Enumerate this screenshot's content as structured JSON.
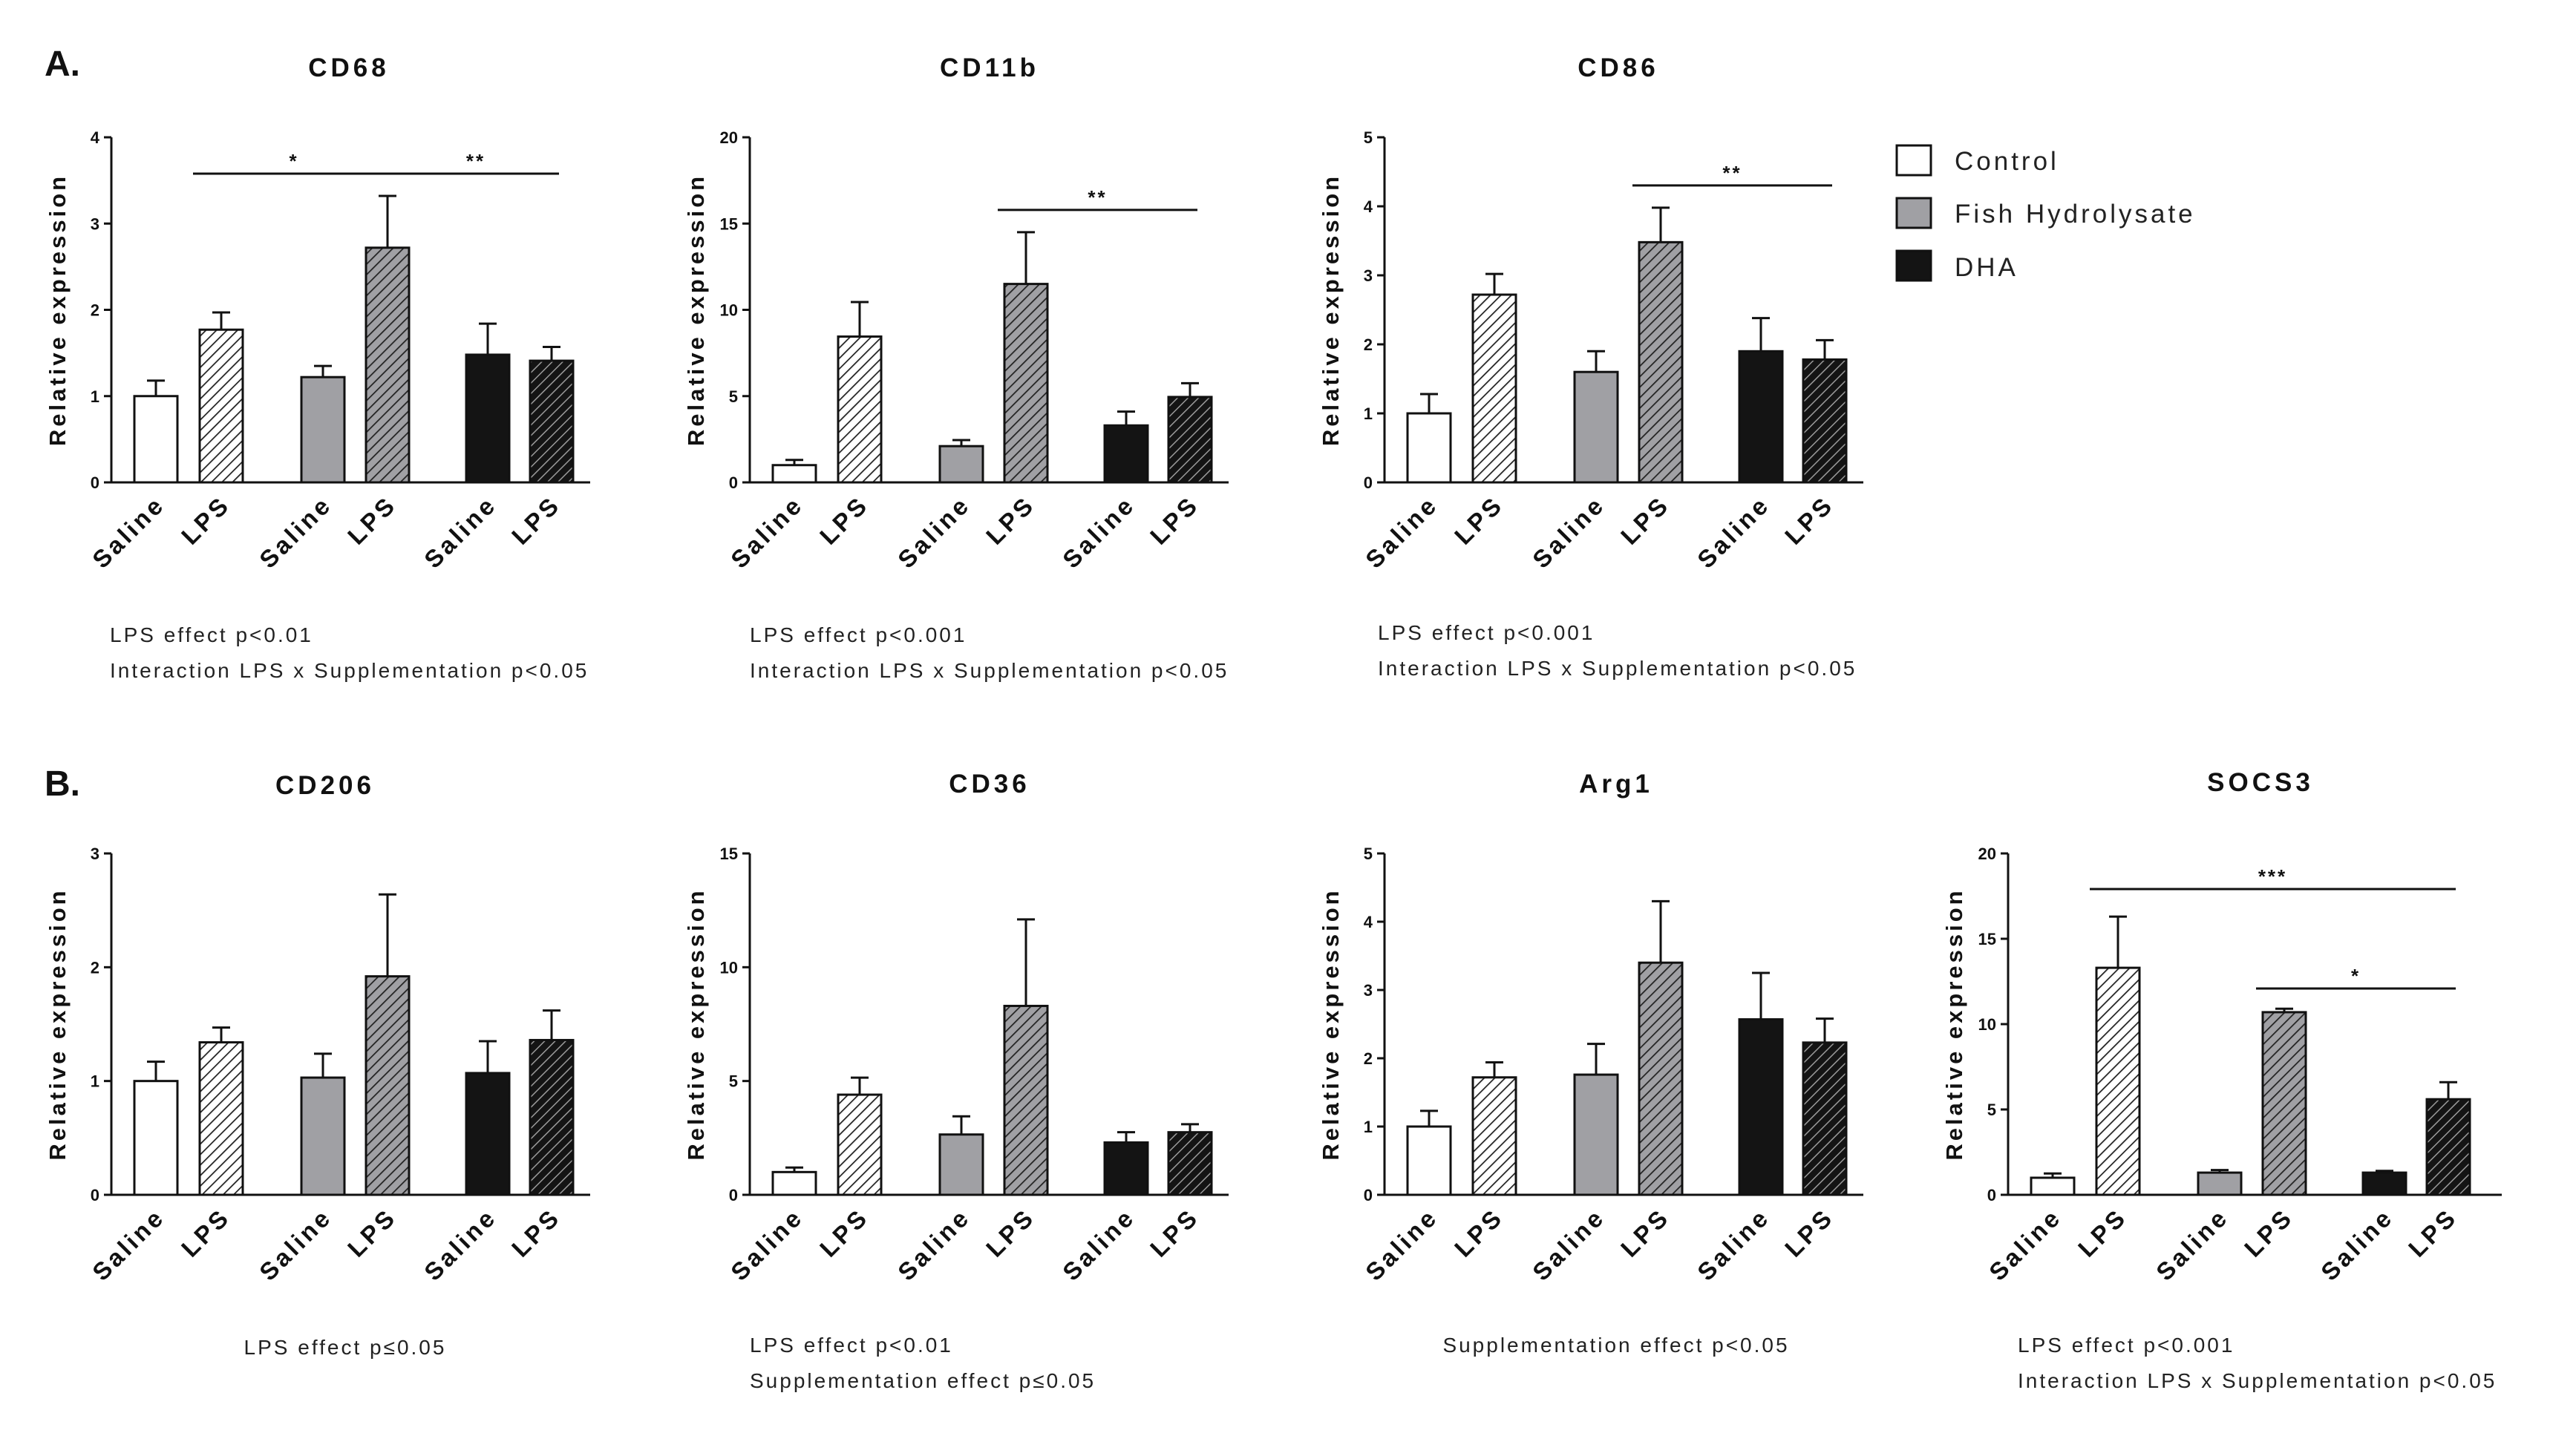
{
  "figure": {
    "panel_labels": [
      "A.",
      "B."
    ],
    "legend": [
      {
        "label": "Control",
        "color": "#ffffff"
      },
      {
        "label": "Fish Hydrolysate",
        "color": "#a0a0a4"
      },
      {
        "label": "DHA",
        "color": "#141414"
      }
    ],
    "axis_label": "Relative expression",
    "colors": {
      "control": "#ffffff",
      "fish": "#a0a0a4",
      "dha": "#141414",
      "stroke": "#111111"
    }
  },
  "chart_data": [
    {
      "type": "bar",
      "title": "CD68",
      "ylabel": "Relative expression",
      "ylim": [
        0,
        4
      ],
      "yticks": [
        0,
        1,
        2,
        3,
        4
      ],
      "categories": [
        "Saline",
        "LPS",
        "Saline",
        "LPS",
        "Saline",
        "LPS"
      ],
      "groups": [
        "Control",
        "Control",
        "Fish Hydrolysate",
        "Fish Hydrolysate",
        "DHA",
        "DHA"
      ],
      "values": [
        1.0,
        1.77,
        1.22,
        2.72,
        1.48,
        1.41
      ],
      "errors": [
        0.18,
        0.2,
        0.13,
        0.6,
        0.36,
        0.16
      ],
      "significance": [
        {
          "from": 1,
          "to": 3,
          "label": "*"
        },
        {
          "from": 3,
          "to": 5,
          "label": "**"
        }
      ],
      "notes": [
        "LPS effect p<0.01",
        "Interaction LPS x Supplementation p<0.05"
      ]
    },
    {
      "type": "bar",
      "title": "CD11b",
      "ylabel": "Relative expression",
      "ylim": [
        0,
        20
      ],
      "yticks": [
        0,
        5,
        10,
        15,
        20
      ],
      "categories": [
        "Saline",
        "LPS",
        "Saline",
        "LPS",
        "Saline",
        "LPS"
      ],
      "groups": [
        "Control",
        "Control",
        "Fish Hydrolysate",
        "Fish Hydrolysate",
        "DHA",
        "DHA"
      ],
      "values": [
        1.0,
        8.45,
        2.1,
        11.5,
        3.3,
        4.95
      ],
      "errors": [
        0.3,
        2.0,
        0.35,
        3.0,
        0.8,
        0.8
      ],
      "significance": [
        {
          "from": 3,
          "to": 5,
          "label": "**"
        }
      ],
      "notes": [
        "LPS effect p<0.001",
        "Interaction LPS x Supplementation p<0.05"
      ]
    },
    {
      "type": "bar",
      "title": "CD86",
      "ylabel": "Relative expression",
      "ylim": [
        0,
        5
      ],
      "yticks": [
        0,
        1,
        2,
        3,
        4,
        5
      ],
      "categories": [
        "Saline",
        "LPS",
        "Saline",
        "LPS",
        "Saline",
        "LPS"
      ],
      "groups": [
        "Control",
        "Control",
        "Fish Hydrolysate",
        "Fish Hydrolysate",
        "DHA",
        "DHA"
      ],
      "values": [
        1.0,
        2.72,
        1.6,
        3.48,
        1.9,
        1.78
      ],
      "errors": [
        0.28,
        0.3,
        0.3,
        0.5,
        0.48,
        0.28
      ],
      "significance": [
        {
          "from": 3,
          "to": 5,
          "label": "**"
        }
      ],
      "notes": [
        "LPS effect p<0.001",
        "Interaction LPS x Supplementation p<0.05"
      ]
    },
    {
      "type": "bar",
      "title": "CD206",
      "ylabel": "Relative expression",
      "ylim": [
        0,
        3
      ],
      "yticks": [
        0,
        1,
        2,
        3
      ],
      "categories": [
        "Saline",
        "LPS",
        "Saline",
        "LPS",
        "Saline",
        "LPS"
      ],
      "groups": [
        "Control",
        "Control",
        "Fish Hydrolysate",
        "Fish Hydrolysate",
        "DHA",
        "DHA"
      ],
      "values": [
        1.0,
        1.34,
        1.03,
        1.92,
        1.07,
        1.36
      ],
      "errors": [
        0.17,
        0.13,
        0.21,
        0.72,
        0.28,
        0.26
      ],
      "significance": [],
      "notes": [
        "LPS effect p≤0.05"
      ]
    },
    {
      "type": "bar",
      "title": "CD36",
      "ylabel": "Relative expression",
      "ylim": [
        0,
        15
      ],
      "yticks": [
        0,
        5,
        10,
        15
      ],
      "categories": [
        "Saline",
        "LPS",
        "Saline",
        "LPS",
        "Saline",
        "LPS"
      ],
      "groups": [
        "Control",
        "Control",
        "Fish Hydrolysate",
        "Fish Hydrolysate",
        "DHA",
        "DHA"
      ],
      "values": [
        1.0,
        4.4,
        2.65,
        8.3,
        2.3,
        2.75
      ],
      "errors": [
        0.2,
        0.75,
        0.8,
        3.8,
        0.45,
        0.35
      ],
      "significance": [],
      "notes": [
        "LPS effect p<0.01",
        "Supplementation effect p≤0.05"
      ]
    },
    {
      "type": "bar",
      "title": "Arg1",
      "ylabel": "Relative expression",
      "ylim": [
        0,
        5
      ],
      "yticks": [
        0,
        1,
        2,
        3,
        4,
        5
      ],
      "categories": [
        "Saline",
        "LPS",
        "Saline",
        "LPS",
        "Saline",
        "LPS"
      ],
      "groups": [
        "Control",
        "Control",
        "Fish Hydrolysate",
        "Fish Hydrolysate",
        "DHA",
        "DHA"
      ],
      "values": [
        1.0,
        1.72,
        1.76,
        3.4,
        2.57,
        2.23
      ],
      "errors": [
        0.23,
        0.22,
        0.45,
        0.9,
        0.68,
        0.35
      ],
      "significance": [],
      "notes": [
        "Supplementation effect p<0.05"
      ]
    },
    {
      "type": "bar",
      "title": "SOCS3",
      "ylabel": "Relative expression",
      "ylim": [
        0,
        20
      ],
      "yticks": [
        0,
        5,
        10,
        15,
        20
      ],
      "categories": [
        "Saline",
        "LPS",
        "Saline",
        "LPS",
        "Saline",
        "LPS"
      ],
      "groups": [
        "Control",
        "Control",
        "Fish Hydrolysate",
        "Fish Hydrolysate",
        "DHA",
        "DHA"
      ],
      "values": [
        1.0,
        13.3,
        1.3,
        10.7,
        1.3,
        5.6
      ],
      "errors": [
        0.25,
        3.0,
        0.15,
        0.2,
        0.1,
        1.0
      ],
      "significance": [
        {
          "from": 1,
          "to": 5,
          "label": "***"
        },
        {
          "from": 3,
          "to": 5,
          "label": "*"
        }
      ],
      "notes": [
        "LPS effect p<0.001",
        "Interaction LPS x Supplementation p<0.05"
      ]
    }
  ]
}
